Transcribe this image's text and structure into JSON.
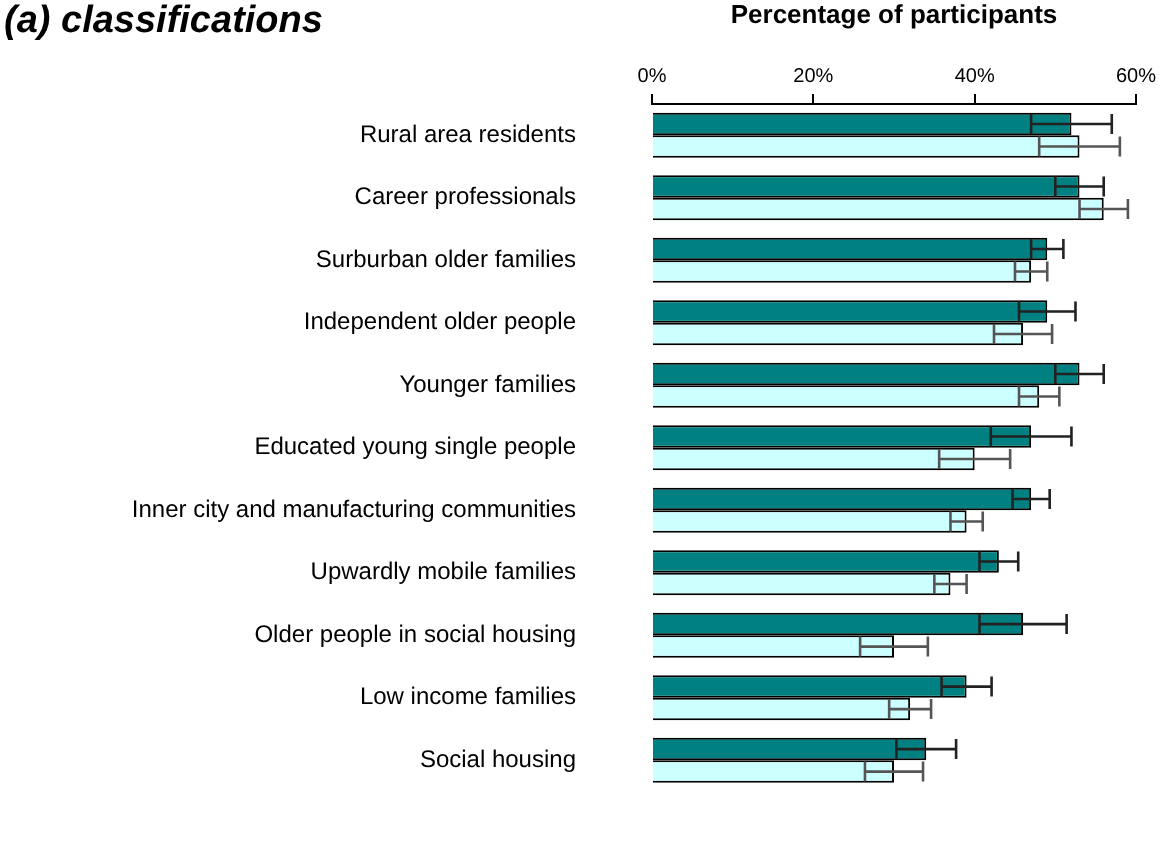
{
  "chart_data": {
    "type": "bar",
    "orientation": "horizontal",
    "title": "(a) classifications",
    "xlabel": "Percentage of participants",
    "categories": [
      "Rural area residents",
      "Career professionals",
      "Surburban older families",
      "Independent older people",
      "Younger families",
      "Educated young single people",
      "Inner city and manufacturing communities",
      "Upwardly mobile families",
      "Older people in social housing",
      "Low income families",
      "Social housing"
    ],
    "series": [
      {
        "color": "#008080",
        "values": [
          52,
          53,
          49,
          49,
          53,
          47,
          47,
          43,
          46,
          39,
          34
        ],
        "errors": [
          5,
          3,
          2,
          3.5,
          3,
          5,
          2.3,
          2.4,
          5.4,
          3.1,
          3.7
        ]
      },
      {
        "color": "#ccffff",
        "values": [
          53,
          56,
          47,
          46,
          48,
          40,
          39,
          37,
          30,
          32,
          30
        ],
        "errors": [
          5,
          3,
          2,
          3.6,
          2.5,
          4.4,
          2,
          2,
          4.2,
          2.6,
          3.6
        ]
      }
    ],
    "xlim": [
      0,
      60
    ],
    "xticks": [
      {
        "value": 0,
        "label": "0%"
      },
      {
        "value": 20,
        "label": "20%"
      },
      {
        "value": 40,
        "label": "40%"
      },
      {
        "value": 60,
        "label": "60%"
      }
    ],
    "grid": false,
    "legend": false
  }
}
